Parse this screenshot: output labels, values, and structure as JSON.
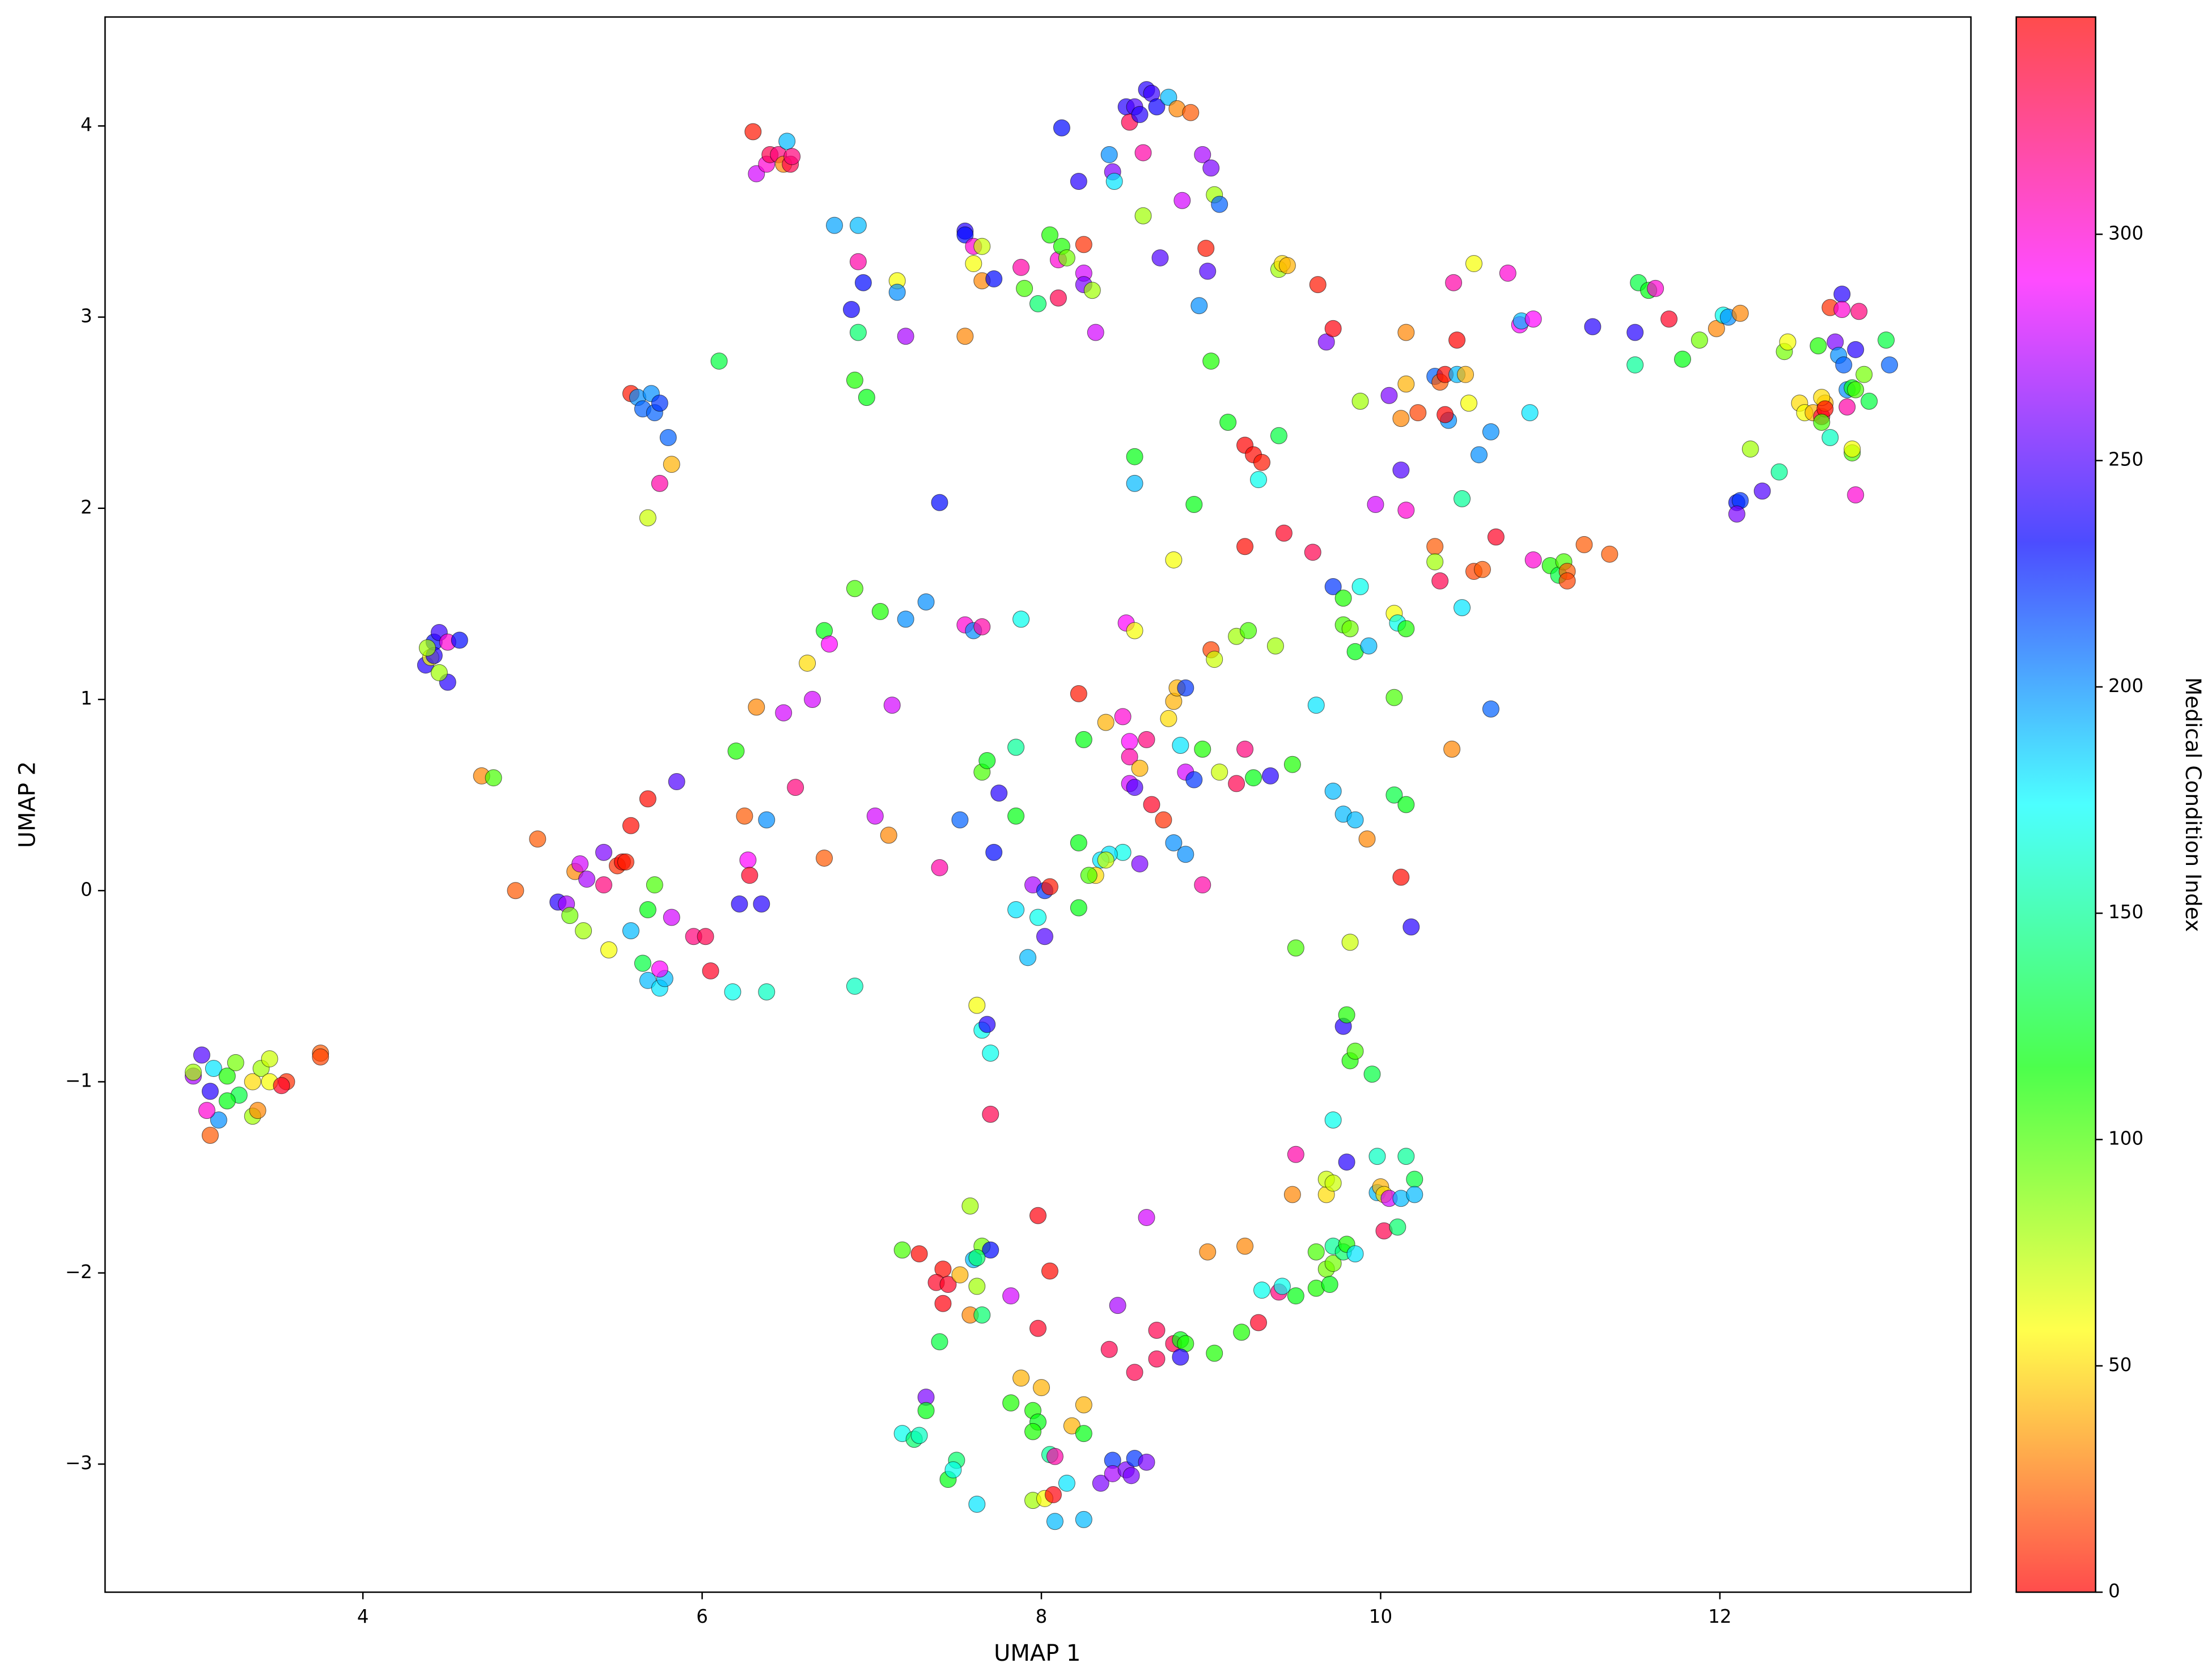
{
  "chart_data": {
    "type": "scatter",
    "xlabel": "UMAP 1",
    "ylabel": "UMAP 2",
    "colorbar_label": "Medical Condition Index",
    "colormap": "hsv",
    "clim": [
      0,
      348
    ],
    "cticks": [
      0,
      50,
      100,
      150,
      200,
      250,
      300
    ],
    "xlim": [
      2.48,
      13.48
    ],
    "ylim": [
      -3.67,
      4.57
    ],
    "xticks": [
      4,
      6,
      8,
      10,
      12
    ],
    "yticks": [
      {
        "value": -3,
        "label": "−3"
      },
      {
        "value": -2,
        "label": "−2"
      },
      {
        "value": -1,
        "label": "−1"
      },
      0,
      1,
      2,
      3,
      4
    ],
    "grid": false,
    "x": [
      3.0,
      3.05,
      3.1,
      3.12,
      3.15,
      3.1,
      3.2,
      3.25,
      3.27,
      3.35,
      3.35,
      3.4,
      3.45,
      3.45,
      3.38,
      3.55,
      3.52,
      3.75,
      3.75,
      3.0,
      3.08,
      3.2,
      4.37,
      4.4,
      4.42,
      4.45,
      4.42,
      4.5,
      4.5,
      4.57,
      4.45,
      4.38,
      5.58,
      5.62,
      5.65,
      5.7,
      5.72,
      5.75,
      5.8,
      5.82,
      5.75,
      5.68,
      6.1,
      6.3,
      6.32,
      6.38,
      6.4,
      6.45,
      6.48,
      6.5,
      6.52,
      6.53,
      6.78,
      6.92,
      6.88,
      6.95,
      6.92,
      6.92,
      6.97,
      6.9,
      7.15,
      7.15,
      7.2,
      7.55,
      7.55,
      7.6,
      7.65,
      7.6,
      7.65,
      7.72,
      7.55,
      7.88,
      7.9,
      7.98,
      8.05,
      8.1,
      8.12,
      8.15,
      8.1,
      8.12,
      8.22,
      8.25,
      8.25,
      8.25,
      8.3,
      8.32,
      8.4,
      8.42,
      8.43,
      8.5,
      8.52,
      8.55,
      8.58,
      8.62,
      8.65,
      8.68,
      8.75,
      8.6,
      8.6,
      8.7,
      8.8,
      8.88,
      8.83,
      8.95,
      9.0,
      9.02,
      9.05,
      8.97,
      8.98,
      8.93,
      9.0,
      9.4,
      9.42,
      9.45,
      9.63,
      9.68,
      9.72,
      9.88,
      10.05,
      10.12,
      10.15,
      10.12,
      10.15,
      9.97,
      10.22,
      10.32,
      10.35,
      10.38,
      10.4,
      10.38,
      10.45,
      10.5,
      10.52,
      10.48,
      10.58,
      10.65,
      10.15,
      10.43,
      10.45,
      10.55,
      10.75,
      10.82,
      10.83,
      10.88,
      10.9,
      10.32,
      10.32,
      10.35,
      10.55,
      10.6,
      10.68,
      10.9,
      11.0,
      11.05,
      11.08,
      11.1,
      11.1,
      11.2,
      11.35,
      11.25,
      11.5,
      11.5,
      11.52,
      11.58,
      11.62,
      11.7,
      11.78,
      11.88,
      11.98,
      12.02,
      12.05,
      12.12,
      12.18,
      12.1,
      12.12,
      12.1,
      12.25,
      12.35,
      12.38,
      12.4,
      12.47,
      12.5,
      12.55,
      12.6,
      12.62,
      12.58,
      12.6,
      12.62,
      12.65,
      12.68,
      12.7,
      12.72,
      12.73,
      12.75,
      12.78,
      12.8,
      12.8,
      12.82,
      12.85,
      12.88,
      12.8,
      12.75,
      12.78,
      12.78,
      12.6,
      12.65,
      12.98,
      13.0,
      12.72,
      9.1,
      9.2,
      9.25,
      9.3,
      9.28,
      9.4,
      8.55,
      8.55,
      8.9,
      9.2,
      9.43,
      9.6,
      8.78,
      7.4,
      9.72,
      9.78,
      9.78,
      9.82,
      9.85,
      9.88,
      9.93,
      10.08,
      10.1,
      10.15,
      10.08,
      10.48,
      10.65,
      10.42,
      9.0,
      9.02,
      9.15,
      9.22,
      9.38,
      9.62,
      8.22,
      8.5,
      8.55,
      8.75,
      8.78,
      8.8,
      8.85,
      8.38,
      8.48,
      8.25,
      8.52,
      8.62,
      8.52,
      8.58,
      8.52,
      8.55,
      8.65,
      8.72,
      8.78,
      8.85,
      8.85,
      8.82,
      8.9,
      8.95,
      9.05,
      9.15,
      9.2,
      9.25,
      9.35,
      9.48,
      8.95,
      8.58,
      8.48,
      8.4,
      8.35,
      8.38,
      8.32,
      8.28,
      8.22,
      8.22,
      9.72,
      9.78,
      9.85,
      9.92,
      10.08,
      10.15,
      10.12,
      10.18,
      9.5,
      9.82,
      4.7,
      4.77,
      4.9,
      5.03,
      5.15,
      5.2,
      5.22,
      5.25,
      5.28,
      5.32,
      5.3,
      5.42,
      5.42,
      5.45,
      5.5,
      5.53,
      5.55,
      5.58,
      5.58,
      5.68,
      5.68,
      5.65,
      5.68,
      5.72,
      5.75,
      5.78,
      5.75,
      5.82,
      5.85,
      5.95,
      6.02,
      6.05,
      6.2,
      6.18,
      6.22,
      6.25,
      6.27,
      6.28,
      6.32,
      6.35,
      6.38,
      6.38,
      6.48,
      6.55,
      6.62,
      6.65,
      6.72,
      6.75,
      6.72,
      6.9,
      6.9,
      7.02,
      7.05,
      7.12,
      7.1,
      7.2,
      7.32,
      7.4,
      7.52,
      7.55,
      7.6,
      7.65,
      7.65,
      7.68,
      7.75,
      7.72,
      7.85,
      7.85,
      7.88,
      7.85,
      7.92,
      7.95,
      7.98,
      8.02,
      8.02,
      8.05,
      7.62,
      7.65,
      7.68,
      7.7,
      7.7,
      7.58,
      7.6,
      7.62,
      7.65,
      7.7,
      7.62,
      7.18,
      7.28,
      7.42,
      7.42,
      7.38,
      7.45,
      7.52,
      7.58,
      7.65,
      7.82,
      7.98,
      8.05,
      7.98,
      7.4,
      7.32,
      7.32,
      7.18,
      7.25,
      7.28,
      7.45,
      7.5,
      7.48,
      7.62,
      7.82,
      7.88,
      7.95,
      7.98,
      7.95,
      8.0,
      8.05,
      8.08,
      7.95,
      8.02,
      8.07,
      8.08,
      8.15,
      8.18,
      8.25,
      8.25,
      8.25,
      8.35,
      8.42,
      8.42,
      8.5,
      8.53,
      8.55,
      8.62,
      8.45,
      8.4,
      8.55,
      8.62,
      8.68,
      8.68,
      8.78,
      8.82,
      8.85,
      8.82,
      8.98,
      9.02,
      9.18,
      9.2,
      9.28,
      9.3,
      9.4,
      9.42,
      9.5,
      9.5,
      9.48,
      9.62,
      9.62,
      9.68,
      9.7,
      9.72,
      9.68,
      9.68,
      9.72,
      9.72,
      9.72,
      9.78,
      9.8,
      9.8,
      9.78,
      9.8,
      9.82,
      9.85,
      9.85,
      9.95,
      9.98,
      9.98,
      10.0,
      10.02,
      10.05,
      10.02,
      10.1,
      10.12,
      10.15,
      10.2,
      10.2
    ],
    "values": [
      -0.97,
      -0.86,
      -1.05,
      -0.93,
      -1.2,
      -1.28,
      -0.97,
      -0.9,
      -1.07,
      -1.0,
      -1.18,
      -0.93,
      -0.88,
      -1.0,
      -1.15,
      -1.0,
      -1.02,
      -0.85,
      -0.87,
      -0.95,
      -1.15,
      -1.1,
      1.18,
      1.22,
      1.3,
      1.35,
      1.23,
      1.3,
      1.09,
      1.31,
      1.14,
      1.27,
      2.6,
      2.58,
      2.52,
      2.6,
      2.5,
      2.55,
      2.37,
      2.23,
      2.13,
      1.95,
      2.77,
      3.97,
      3.75,
      3.8,
      3.85,
      3.85,
      3.8,
      3.92,
      3.8,
      3.84,
      3.48,
      3.48,
      3.04,
      3.18,
      3.29,
      2.92,
      2.58,
      2.67,
      3.19,
      3.13,
      2.9,
      3.45,
      3.43,
      3.37,
      3.37,
      3.28,
      3.19,
      3.2,
      2.9,
      3.26,
      3.15,
      3.07,
      3.43,
      3.3,
      3.37,
      3.31,
      3.1,
      3.99,
      3.71,
      3.38,
      3.23,
      3.17,
      3.14,
      2.92,
      3.85,
      3.76,
      3.71,
      4.1,
      4.02,
      4.1,
      4.06,
      4.19,
      4.17,
      4.1,
      4.15,
      3.86,
      3.53,
      3.31,
      4.09,
      4.07,
      3.61,
      3.85,
      3.78,
      3.64,
      3.59,
      3.36,
      3.24,
      3.06,
      2.77,
      3.25,
      3.28,
      3.27,
      3.17,
      2.87,
      2.94,
      2.56,
      2.59,
      2.47,
      2.65,
      2.2,
      1.99,
      2.02,
      2.5,
      2.69,
      2.66,
      2.7,
      2.46,
      2.49,
      2.7,
      2.7,
      2.55,
      2.05,
      2.28,
      2.4,
      2.92,
      3.18,
      2.88,
      3.28,
      3.23,
      2.96,
      2.98,
      2.5,
      2.99,
      1.8,
      1.72,
      1.62,
      1.67,
      1.68,
      1.85,
      1.73,
      1.7,
      1.65,
      1.72,
      1.67,
      1.62,
      1.81,
      1.76,
      2.95,
      2.92,
      2.75,
      3.18,
      3.14,
      3.15,
      2.99,
      2.78,
      2.88,
      2.94,
      3.01,
      3.0,
      3.02,
      2.31,
      2.03,
      2.04,
      1.97,
      2.09,
      2.19,
      2.82,
      2.87,
      2.55,
      2.5,
      2.5,
      2.48,
      2.55,
      2.85,
      2.58,
      2.52,
      3.05,
      2.87,
      2.8,
      3.12,
      2.75,
      2.62,
      2.63,
      2.62,
      2.83,
      3.03,
      2.7,
      2.56,
      2.07,
      2.53,
      2.29,
      2.31,
      2.45,
      2.37,
      2.88,
      2.75,
      3.04,
      2.45,
      2.33,
      2.28,
      2.24,
      2.15,
      2.38,
      2.27,
      2.13,
      2.02,
      1.8,
      1.87,
      1.77,
      1.73,
      2.03,
      1.59,
      1.53,
      1.39,
      1.37,
      1.25,
      1.59,
      1.28,
      1.45,
      1.4,
      1.37,
      1.01,
      1.48,
      0.95,
      0.74,
      1.26,
      1.21,
      1.33,
      1.36,
      1.28,
      0.97,
      1.03,
      1.4,
      1.36,
      0.9,
      0.99,
      1.06,
      1.06,
      0.88,
      0.91,
      0.79,
      0.78,
      0.79,
      0.7,
      0.64,
      0.56,
      0.54,
      0.45,
      0.37,
      0.25,
      0.19,
      0.62,
      0.76,
      0.58,
      0.74,
      0.62,
      0.56,
      0.74,
      0.59,
      0.6,
      0.66,
      0.03,
      0.14,
      0.2,
      0.19,
      0.16,
      0.16,
      0.08,
      0.08,
      0.25,
      -0.09,
      0.52,
      0.4,
      0.37,
      0.27,
      0.5,
      0.45,
      0.07,
      -0.19,
      -0.3,
      -0.27,
      0.6,
      0.59,
      0.0,
      0.27,
      -0.06,
      -0.07,
      -0.13,
      0.1,
      0.14,
      0.06,
      -0.21,
      0.2,
      0.03,
      -0.31,
      0.13,
      0.15,
      0.15,
      0.34,
      -0.21,
      0.48,
      -0.1,
      -0.38,
      -0.47,
      0.03,
      -0.51,
      -0.46,
      -0.41,
      -0.14,
      0.57,
      -0.24,
      -0.24,
      -0.42,
      0.73,
      -0.53,
      -0.07,
      0.39,
      0.16,
      0.08,
      0.96,
      -0.07,
      0.37,
      -0.53,
      0.93,
      0.54,
      1.19,
      1.0,
      1.36,
      1.29,
      0.17,
      1.58,
      -0.5,
      0.39,
      1.46,
      0.97,
      0.29,
      1.42,
      1.51,
      0.12,
      0.37,
      1.39,
      1.36,
      1.38,
      0.62,
      0.68,
      0.51,
      0.2,
      0.75,
      0.39,
      1.42,
      -0.1,
      -0.35,
      0.03,
      -0.14,
      0.0,
      -0.24,
      0.02,
      -0.6,
      -0.73,
      -0.7,
      -0.85,
      -1.17,
      -1.65,
      -1.93,
      -2.07,
      -1.86,
      -1.88,
      -1.92,
      -1.88,
      -1.9,
      -1.98,
      -2.16,
      -2.05,
      -2.06,
      -2.01,
      -2.22,
      -2.22,
      -2.12,
      -1.7,
      -1.99,
      -2.29,
      -2.36,
      -2.65,
      -2.72,
      -2.84,
      -2.87,
      -2.85,
      -3.08,
      -2.98,
      -3.03,
      -3.21,
      -2.68,
      -2.55,
      -2.72,
      -2.78,
      -2.83,
      -2.6,
      -2.95,
      -2.96,
      -3.19,
      -3.18,
      -3.16,
      -3.3,
      -3.1,
      -2.8,
      -2.69,
      -2.84,
      -3.29,
      -3.1,
      -2.98,
      -3.05,
      -3.03,
      -3.06,
      -2.97,
      -2.99,
      -2.17,
      -2.4,
      -2.52,
      -1.71,
      -2.3,
      -2.45,
      -2.37,
      -2.35,
      -2.37,
      -2.44,
      -1.89,
      -2.42,
      -2.31,
      -1.86,
      -2.26,
      -2.09,
      -2.1,
      -2.07,
      -2.12,
      -1.38,
      -1.59,
      -2.08,
      -1.89,
      -1.98,
      -2.06,
      -1.95,
      -1.59,
      -1.51,
      -1.53,
      -1.86,
      -1.2,
      -1.89,
      -1.85,
      -1.42,
      -0.71,
      -0.65,
      -0.89,
      -0.84,
      -1.9,
      -0.96,
      -1.39,
      -1.58,
      -1.55,
      -1.59,
      -1.61,
      -1.78,
      -1.76,
      -1.61,
      -1.39,
      -1.51,
      -1.59
    ],
    "color_values": [
      270,
      250,
      240,
      180,
      200,
      20,
      110,
      90,
      130,
      50,
      80,
      80,
      70,
      60,
      30,
      10,
      340,
      20,
      15,
      80,
      300,
      120,
      240,
      60,
      230,
      245,
      240,
      300,
      240,
      230,
      80,
      80,
      5,
      200,
      210,
      200,
      210,
      220,
      210,
      40,
      310,
      70,
      130,
      5,
      280,
      300,
      330,
      320,
      30,
      190,
      330,
      320,
      195,
      190,
      235,
      230,
      310,
      140,
      120,
      110,
      60,
      200,
      270,
      240,
      230,
      300,
      70,
      60,
      30,
      230,
      30,
      310,
      100,
      140,
      110,
      300,
      110,
      90,
      330,
      230,
      240,
      10,
      280,
      260,
      80,
      280,
      200,
      260,
      180,
      240,
      330,
      250,
      240,
      240,
      245,
      235,
      190,
      310,
      80,
      250,
      30,
      20,
      280,
      270,
      260,
      80,
      210,
      5,
      250,
      200,
      110,
      80,
      50,
      40,
      5,
      260,
      345,
      80,
      260,
      30,
      40,
      250,
      300,
      280,
      15,
      210,
      20,
      350,
      200,
      0,
      190,
      40,
      60,
      150,
      200,
      200,
      30,
      310,
      0,
      60,
      300,
      290,
      190,
      180,
      290,
      20,
      80,
      330,
      15,
      20,
      340,
      300,
      110,
      130,
      100,
      20,
      15,
      20,
      20,
      240,
      240,
      150,
      130,
      120,
      300,
      340,
      120,
      90,
      30,
      170,
      200,
      30,
      80,
      230,
      220,
      260,
      250,
      150,
      90,
      60,
      50,
      60,
      40,
      330,
      40,
      110,
      50,
      350,
      10,
      260,
      200,
      240,
      210,
      200,
      120,
      100,
      240,
      320,
      90,
      130,
      300,
      310,
      100,
      60,
      100,
      160,
      130,
      210,
      300,
      120,
      0,
      350,
      5,
      170,
      130,
      120,
      190,
      120,
      350,
      340,
      330,
      60,
      230,
      220,
      110,
      100,
      90,
      120,
      170,
      190,
      60,
      170,
      110,
      100,
      180,
      210,
      30,
      15,
      70,
      80,
      100,
      80,
      180,
      5,
      290,
      60,
      50,
      40,
      40,
      220,
      40,
      300,
      120,
      290,
      320,
      310,
      40,
      280,
      250,
      340,
      10,
      200,
      200,
      280,
      180,
      220,
      110,
      70,
      330,
      320,
      120,
      240,
      110,
      310,
      260,
      170,
      180,
      180,
      70,
      50,
      100,
      120,
      120,
      190,
      190,
      190,
      30,
      130,
      120,
      350,
      240,
      100,
      70,
      30,
      100,
      20,
      20,
      240,
      270,
      90,
      30,
      280,
      270,
      80,
      260,
      320,
      60,
      10,
      0,
      355,
      350,
      190,
      350,
      120,
      130,
      190,
      100,
      180,
      190,
      290,
      280,
      250,
      320,
      330,
      340,
      110,
      170,
      240,
      20,
      290,
      340,
      30,
      240,
      200,
      160,
      280,
      320,
      50,
      280,
      120,
      290,
      20,
      100,
      160,
      280,
      110,
      280,
      30,
      200,
      200,
      310,
      210,
      300,
      200,
      310,
      100,
      120,
      240,
      230,
      150,
      120,
      170,
      180,
      190,
      270,
      170,
      220,
      250,
      5,
      60,
      170,
      240,
      170,
      330,
      80,
      190,
      80,
      90,
      230,
      140,
      100,
      350,
      350,
      345,
      340,
      340,
      40,
      30,
      140,
      280,
      345,
      350,
      340,
      130,
      260,
      120,
      170,
      140,
      160,
      120,
      140,
      170,
      180,
      110,
      40,
      110,
      120,
      110,
      40,
      150,
      310,
      80,
      60,
      345,
      190,
      180,
      40,
      40,
      120,
      190,
      260,
      220,
      270,
      260,
      260,
      220,
      260,
      270,
      330,
      330,
      280,
      330,
      330,
      330,
      120,
      110,
      240,
      30,
      110,
      110,
      30,
      340,
      170,
      320,
      170,
      120,
      310,
      30,
      110,
      100,
      90,
      120,
      90,
      50,
      70,
      70,
      150,
      170,
      140,
      110,
      240,
      240,
      110,
      110,
      100,
      180,
      130,
      160,
      190,
      40,
      50,
      280,
      330,
      140,
      190,
      150,
      130,
      190
    ]
  }
}
